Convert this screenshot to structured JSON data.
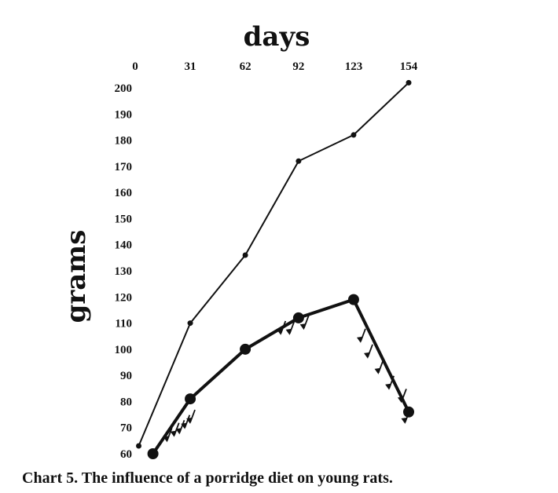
{
  "chart_data": {
    "type": "line",
    "xlabel": "days",
    "ylabel": "grams",
    "x_ticks": [
      0,
      31,
      62,
      92,
      123,
      154
    ],
    "y_ticks": [
      60,
      70,
      80,
      90,
      100,
      110,
      120,
      130,
      140,
      150,
      160,
      170,
      180,
      190,
      200
    ],
    "xlim": [
      0,
      154
    ],
    "ylim": [
      60,
      202
    ],
    "x_axis_position": "top",
    "grid": false,
    "series": [
      {
        "style": "thin",
        "points": [
          [
            2,
            63
          ],
          [
            31,
            110
          ],
          [
            62,
            136
          ],
          [
            92,
            172
          ],
          [
            123,
            182
          ],
          [
            154,
            202
          ]
        ]
      },
      {
        "style": "thick",
        "points": [
          [
            10,
            60
          ],
          [
            31,
            81
          ],
          [
            62,
            100
          ],
          [
            92,
            112
          ],
          [
            123,
            119
          ],
          [
            154,
            76
          ]
        ]
      }
    ],
    "arrow_annotations": [
      {
        "x": 31,
        "y": 72
      },
      {
        "x": 28,
        "y": 70
      },
      {
        "x": 25,
        "y": 68
      },
      {
        "x": 22,
        "y": 67
      },
      {
        "x": 18,
        "y": 65
      },
      {
        "x": 82,
        "y": 106
      },
      {
        "x": 87,
        "y": 106
      },
      {
        "x": 95,
        "y": 108
      },
      {
        "x": 127,
        "y": 103
      },
      {
        "x": 131,
        "y": 97
      },
      {
        "x": 137,
        "y": 91
      },
      {
        "x": 143,
        "y": 85
      },
      {
        "x": 150,
        "y": 80
      },
      {
        "x": 152,
        "y": 72
      }
    ]
  },
  "caption": "Chart 5.  The influence of a porridge diet on young rats."
}
